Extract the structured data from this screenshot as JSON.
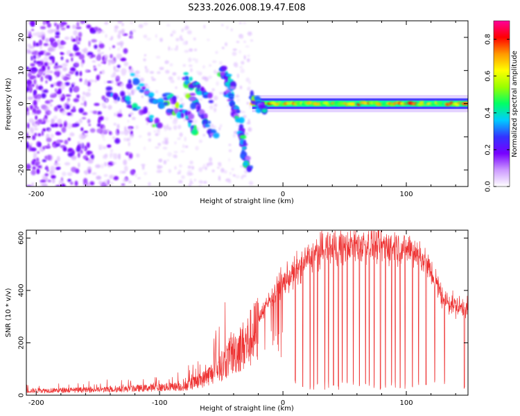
{
  "page": {
    "title": "S233.2026.008.19.47.E08"
  },
  "chart_data": [
    {
      "type": "heatmap",
      "name": "spectrogram",
      "xlabel": "Height of straight line (km)",
      "ylabel": "Frequency (Hz)",
      "xlim": [
        -208,
        150
      ],
      "ylim": [
        -25,
        25
      ],
      "x_ticks": [
        -200,
        -100,
        0,
        100
      ],
      "x_tick_labels": [
        "-200",
        "-100",
        "0",
        "100"
      ],
      "y_ticks": [
        -20,
        -10,
        0,
        10,
        20
      ],
      "y_tick_labels": [
        "-20",
        "-10",
        "0",
        "10",
        "20"
      ],
      "colorbar": {
        "label": "Normalized spectral amplitude",
        "range": [
          0,
          0.9
        ],
        "ticks": [
          0,
          0.2,
          0.4,
          0.6,
          0.8
        ],
        "tick_labels": [
          "0.0",
          "0.2",
          "0.4",
          "0.6",
          "0.8"
        ],
        "colors": [
          "#ffffff",
          "#cc99ff",
          "#7700ff",
          "#3333ff",
          "#00ccff",
          "#00ff66",
          "#99ff00",
          "#ffff00",
          "#ff9900",
          "#ff0000",
          "#ff0099"
        ]
      },
      "features": {
        "carrier": {
          "x_from": -25,
          "x_to": 150,
          "freq": 0
        },
        "noise_region": {
          "x_from": -208,
          "x_to": -140
        },
        "tracks": [
          {
            "x": [
              -140,
              -100
            ],
            "f": [
              4,
              -6
            ]
          },
          {
            "x": [
              -125,
              -90
            ],
            "f": [
              8,
              -3
            ]
          },
          {
            "x": [
              -95,
              -70
            ],
            "f": [
              3,
              -8
            ]
          },
          {
            "x": [
              -80,
              -60
            ],
            "f": [
              8,
              2
            ]
          },
          {
            "x": [
              -75,
              -55
            ],
            "f": [
              3,
              -10
            ]
          },
          {
            "x": [
              -50,
              -40
            ],
            "f": [
              10,
              5
            ]
          },
          {
            "x": [
              -45,
              -35
            ],
            "f": [
              4,
              -5
            ]
          },
          {
            "x": [
              -35,
              -28
            ],
            "f": [
              -8,
              -20
            ]
          },
          {
            "x": [
              -25,
              -15
            ],
            "f": [
              2,
              -2
            ]
          }
        ]
      }
    },
    {
      "type": "line",
      "name": "snr",
      "xlabel": "Height of straight line (km)",
      "ylabel": "SNR (10 * v/v)",
      "xlim": [
        -208,
        150
      ],
      "ylim": [
        0,
        630
      ],
      "x_ticks": [
        -200,
        -100,
        0,
        100
      ],
      "x_tick_labels": [
        "-200",
        "-100",
        "0",
        "100"
      ],
      "y_ticks": [
        0,
        200,
        400,
        600
      ],
      "y_tick_labels": [
        "0",
        "200",
        "400",
        "600"
      ],
      "series": [
        {
          "name": "SNR",
          "color": "#ee3333",
          "envelope": {
            "x": [
              -208,
              -140,
              -120,
              -80,
              -65,
              -50,
              -40,
              -30,
              -20,
              -10,
              0,
              10,
              20,
              30,
              40,
              50,
              60,
              70,
              80,
              90,
              100,
              110,
              120,
              130,
              140,
              150
            ],
            "y": [
              20,
              25,
              30,
              40,
              70,
              130,
              190,
              230,
              300,
              370,
              430,
              470,
              520,
              550,
              565,
              570,
              575,
              575,
              570,
              565,
              560,
              545,
              470,
              370,
              340,
              330
            ]
          },
          "dropout_x": [
            10,
            16,
            22,
            25,
            28,
            34,
            37,
            41,
            45,
            48,
            52,
            57,
            62,
            67,
            70,
            74,
            79,
            83,
            88,
            91,
            95,
            99,
            105,
            110,
            116,
            123,
            131,
            147
          ]
        }
      ]
    }
  ]
}
